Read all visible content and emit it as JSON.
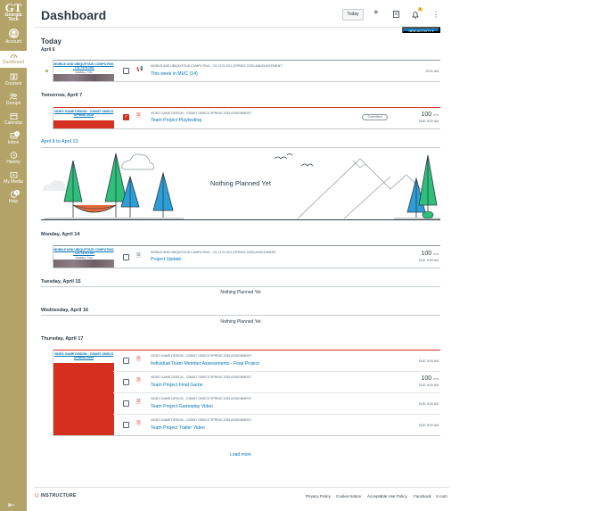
{
  "global_nav": {
    "logo_line1": "GT",
    "logo_line2": "Georgia",
    "logo_line3": "Tech",
    "items": [
      {
        "label": "Account",
        "icon": "account-icon"
      },
      {
        "label": "Dashboard",
        "icon": "dashboard-icon"
      },
      {
        "label": "Courses",
        "icon": "courses-icon"
      },
      {
        "label": "Groups",
        "icon": "groups-icon"
      },
      {
        "label": "Calendar",
        "icon": "calendar-icon"
      },
      {
        "label": "Inbox",
        "icon": "inbox-icon",
        "badge": "1"
      },
      {
        "label": "History",
        "icon": "history-icon"
      },
      {
        "label": "My Media",
        "icon": "media-icon"
      },
      {
        "label": "Help",
        "icon": "help-icon",
        "badge": "9"
      }
    ],
    "collapse_icon": "collapse-nav-icon"
  },
  "header": {
    "title": "Dashboard",
    "today_button": "Today",
    "notification_count": "1",
    "new_activity": "NEW ACTIVITY"
  },
  "days": {
    "today": {
      "heading": "Today",
      "date": "April 6"
    },
    "tomorrow": "Tomorrow, April 7",
    "range": "April 8 to April 13",
    "monday": "Monday, April 14",
    "tuesday": "Tuesday, April 15",
    "wednesday": "Wednesday, April 16",
    "thursday": "Thursday, April 17"
  },
  "courses": {
    "muc": {
      "title": "MOBILE AND UBIQUITOUS COMPUTING - CS-7470-O01",
      "subtitle": "OVERALL, 7470"
    },
    "vgd": {
      "title": "VIDEO GAME DESIGN - CS6457 OMSCS SPRING 2025"
    }
  },
  "items": {
    "announcement": {
      "meta": "MOBILE AND UBIQUITOUS COMPUTING - CS-7470-O01 (SPRING 2025) ANNOUNCEMENT",
      "title": "This week in MUC (14)",
      "time": "10:51 AM"
    },
    "playtesting": {
      "meta": "VIDEO GAME DESIGN - CS6457 OMSCS SPRING 2025 ASSIGNMENT",
      "title": "Team Project Playtesting",
      "status": "Submitted",
      "points": "100",
      "pts_label": "PTS",
      "due": "DUE: 8:00 AM"
    },
    "project_update": {
      "meta": "MOBILE AND UBIQUITOUS COMPUTING - CS-7470-O01 (SPRING 2025) ASSIGNMENT",
      "title": "Project Update",
      "points": "100",
      "pts_label": "PTS",
      "due": "DUE: 6:59 AM"
    },
    "thursday": [
      {
        "meta": "VIDEO GAME DESIGN - CS6457 OMSCS SPRING 2025 ASSIGNMENT",
        "title": "Individual Team Member Assessments - Final Project",
        "points": "",
        "due": "DUE: 8:00 AM"
      },
      {
        "meta": "VIDEO GAME DESIGN - CS6457 OMSCS SPRING 2025 ASSIGNMENT",
        "title": "Team Project Final Game",
        "points": "100",
        "due": "DUE: 8:00 AM"
      },
      {
        "meta": "VIDEO GAME DESIGN - CS6457 OMSCS SPRING 2025 ASSIGNMENT",
        "title": "Team Project Gameplay Video",
        "points": "",
        "due": "DUE: 8:00 AM"
      },
      {
        "meta": "VIDEO GAME DESIGN - CS6457 OMSCS SPRING 2025 ASSIGNMENT",
        "title": "Team Project Trailer Video",
        "points": "",
        "due": "DUE: 8:00 AM"
      }
    ]
  },
  "nothing_planned": "Nothing Planned Yet",
  "load_more": "Load more",
  "footer": {
    "brand": "INSTRUCTURE",
    "links": [
      "Privacy Policy",
      "Cookie Notice",
      "Acceptable Use Policy",
      "Facebook",
      "X.com"
    ]
  },
  "colors": {
    "nav_gold": "#b3a369",
    "link_blue": "#0374b5",
    "assignment_red": "#d52f1f"
  }
}
